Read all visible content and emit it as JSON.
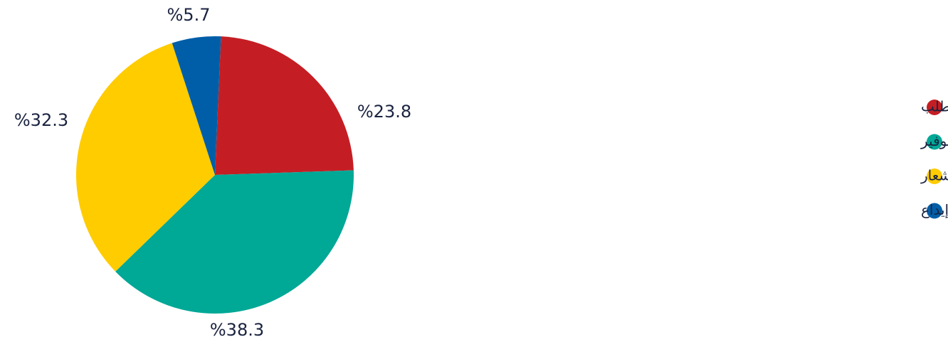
{
  "chart_data": {
    "type": "pie",
    "categories": [
      "حسابات جارية وتحت الطلب",
      "ودائع التوفير",
      "ودائع لأجل وخاضعة لإشعار",
      "شهادات إيداع"
    ],
    "values": [
      23.8,
      38.3,
      32.3,
      5.7
    ],
    "value_labels": [
      "%23.8",
      "%38.3",
      "%32.3",
      "%5.7"
    ],
    "colors": [
      "#c41e24",
      "#00a896",
      "#ffcc00",
      "#005ea8"
    ],
    "legend": "right"
  }
}
